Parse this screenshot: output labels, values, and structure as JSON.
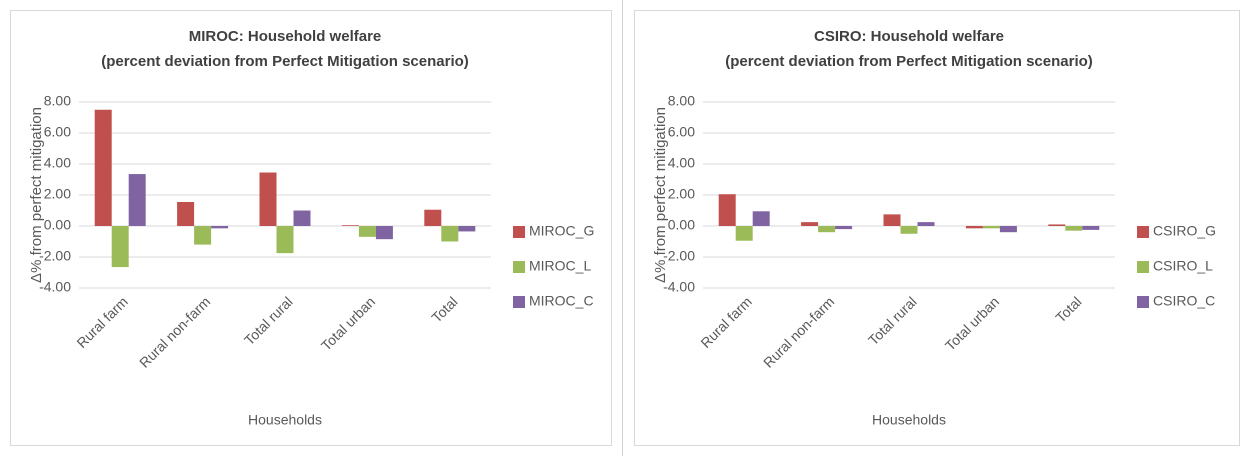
{
  "chart_data": [
    {
      "type": "bar",
      "title": "MIROC: Household welfare",
      "subtitle": "(percent deviation from Perfect Mitigation scenario)",
      "y_label": "Δ% from perfect mitigation",
      "x_label": "Households",
      "categories": [
        "Rural farm",
        "Rural non-farm",
        "Total rural",
        "Total urban",
        "Total"
      ],
      "series": [
        {
          "name": "MIROC_G",
          "color": "#c0504d",
          "values": [
            7.5,
            1.55,
            3.45,
            0.05,
            1.05
          ]
        },
        {
          "name": "MIROC_L",
          "color": "#9bbb59",
          "values": [
            -2.65,
            -1.2,
            -1.75,
            -0.7,
            -1.0
          ]
        },
        {
          "name": "MIROC_C",
          "color": "#8064a2",
          "values": [
            3.35,
            -0.15,
            1.0,
            -0.85,
            -0.35
          ]
        }
      ],
      "ylim": [
        -4,
        8
      ],
      "yticks": [
        {
          "value": -4,
          "label": "-4.00"
        },
        {
          "value": -2,
          "label": "-2.00"
        },
        {
          "value": 0,
          "label": "0.00"
        },
        {
          "value": 2,
          "label": "2.00"
        },
        {
          "value": 4,
          "label": "4.00"
        },
        {
          "value": 6,
          "label": "6.00"
        },
        {
          "value": 8,
          "label": "8.00"
        }
      ],
      "grid": true,
      "legend": "right"
    },
    {
      "type": "bar",
      "title": "CSIRO: Household welfare",
      "subtitle": "(percent deviation from Perfect Mitigation scenario)",
      "y_label": "Δ% from perfect mitigation",
      "x_label": "Households",
      "categories": [
        "Rural farm",
        "Rural non-farm",
        "Total rural",
        "Total urban",
        "Total"
      ],
      "series": [
        {
          "name": "CSIRO_G",
          "color": "#c0504d",
          "values": [
            2.05,
            0.25,
            0.75,
            -0.15,
            0.1
          ]
        },
        {
          "name": "CSIRO_L",
          "color": "#9bbb59",
          "values": [
            -0.95,
            -0.4,
            -0.5,
            -0.15,
            -0.3
          ]
        },
        {
          "name": "CSIRO_C",
          "color": "#8064a2",
          "values": [
            0.95,
            -0.2,
            0.25,
            -0.4,
            -0.25
          ]
        }
      ],
      "ylim": [
        -4,
        8
      ],
      "yticks": [
        {
          "value": -4,
          "label": "-4.00"
        },
        {
          "value": -2,
          "label": "-2.00"
        },
        {
          "value": 0,
          "label": "0.00"
        },
        {
          "value": 2,
          "label": "2.00"
        },
        {
          "value": 4,
          "label": "4.00"
        },
        {
          "value": 6,
          "label": "6.00"
        },
        {
          "value": 8,
          "label": "8.00"
        }
      ],
      "grid": true,
      "legend": "right"
    }
  ]
}
